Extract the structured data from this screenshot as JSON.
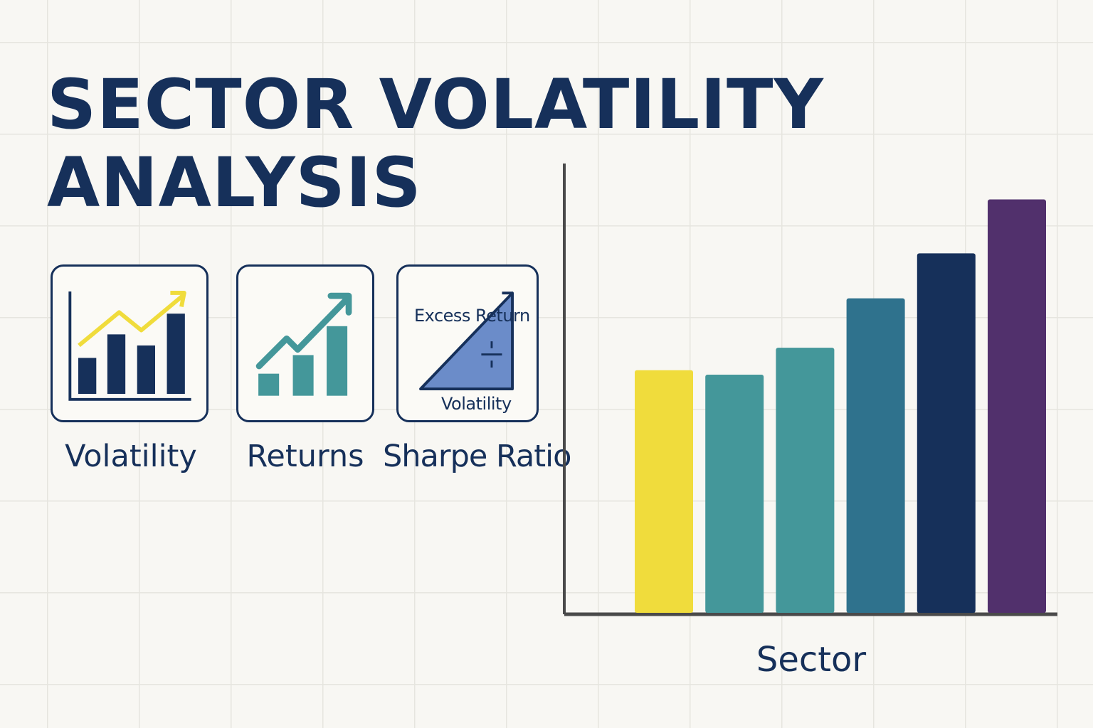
{
  "title": {
    "line1": "SECTOR VOLATILITY",
    "line2": "ANALYSIS"
  },
  "metrics": [
    {
      "label": "Volatility",
      "icon": "bar-chart-trend-icon"
    },
    {
      "label": "Returns",
      "icon": "growth-chart-arrow-icon"
    },
    {
      "label": "Sharpe Ratio",
      "icon": "ratio-triangle-icon",
      "numerator": "Excess Return",
      "denominator": "Volatility"
    }
  ],
  "colors": {
    "navy": "#16305a",
    "yellow": "#f0dc3c",
    "teal": "#44979a",
    "blue_teal": "#2f728d",
    "purple": "#51306c",
    "sharpe_fill": "#6b8cc9"
  },
  "chart_data": {
    "type": "bar",
    "xlabel": "Sector",
    "ylabel": "",
    "categories": [
      "",
      "",
      "",
      "",
      "",
      ""
    ],
    "values": [
      54,
      53,
      59,
      70,
      80,
      92
    ],
    "colors": [
      "#f0dc3c",
      "#44979a",
      "#44979a",
      "#2f728d",
      "#16305a",
      "#51306c"
    ],
    "ylim": [
      0,
      100
    ],
    "grid": false,
    "legend": "none"
  }
}
